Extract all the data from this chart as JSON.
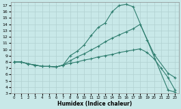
{
  "xlabel": "Humidex (Indice chaleur)",
  "bg_color": "#c8e8e8",
  "line_color": "#2e7d6e",
  "xlim": [
    -0.5,
    23.5
  ],
  "ylim": [
    3,
    17.5
  ],
  "xticks": [
    0,
    1,
    2,
    3,
    4,
    5,
    6,
    7,
    8,
    9,
    10,
    11,
    12,
    13,
    14,
    15,
    16,
    17,
    18,
    19,
    20,
    21,
    22,
    23
  ],
  "yticks": [
    3,
    4,
    5,
    6,
    7,
    8,
    9,
    10,
    11,
    12,
    13,
    14,
    15,
    16,
    17
  ],
  "curve1_x": [
    0,
    1,
    2,
    3,
    4,
    5,
    6,
    7,
    8,
    9,
    10,
    11,
    12,
    13,
    14,
    15,
    16,
    17,
    19,
    22,
    23
  ],
  "curve1_y": [
    8,
    8,
    7.7,
    7.5,
    7.3,
    7.3,
    7.2,
    7.5,
    9.0,
    9.7,
    10.7,
    12.2,
    13.5,
    14.2,
    16.0,
    17.0,
    17.2,
    16.8,
    11.5,
    3.5,
    3.2
  ],
  "curve2_x": [
    0,
    1,
    2,
    3,
    4,
    5,
    6,
    7,
    8,
    9,
    10,
    11,
    12,
    13,
    14,
    15,
    16,
    17,
    18,
    20,
    22,
    23
  ],
  "curve2_y": [
    8,
    8,
    7.7,
    7.5,
    7.3,
    7.3,
    7.2,
    7.5,
    8.2,
    8.8,
    9.3,
    9.9,
    10.5,
    11.2,
    11.8,
    12.3,
    12.8,
    13.3,
    14.0,
    9.2,
    6.2,
    5.5
  ],
  "curve3_x": [
    0,
    1,
    2,
    3,
    4,
    5,
    6,
    7,
    8,
    9,
    10,
    11,
    12,
    13,
    14,
    15,
    16,
    17,
    18,
    19,
    20,
    21,
    22,
    23
  ],
  "curve3_y": [
    8,
    8,
    7.7,
    7.5,
    7.3,
    7.3,
    7.2,
    7.5,
    7.8,
    8.0,
    8.3,
    8.5,
    8.8,
    9.0,
    9.2,
    9.5,
    9.7,
    9.9,
    10.1,
    9.5,
    8.5,
    7.0,
    5.5,
    3.5
  ]
}
